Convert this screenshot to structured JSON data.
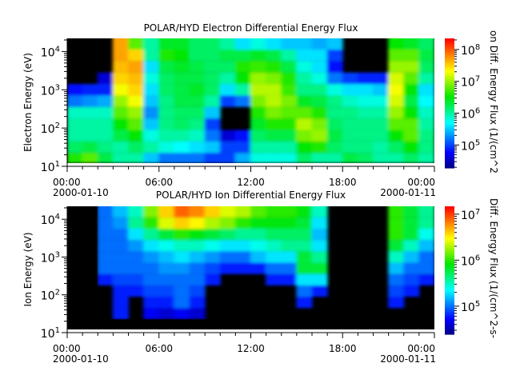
{
  "chart_data": [
    {
      "type": "heatmap",
      "title": "POLAR/HYD  Electron Differential Energy Flux",
      "ylabel": "Electron Energy (eV)",
      "colorbar_label": "on Diff. Energy Flux (1/(cm^2",
      "y_scale": "log",
      "ylim": [
        10,
        22000
      ],
      "y_ticks": [
        {
          "base": "10",
          "exp": "1"
        },
        {
          "base": "10",
          "exp": "2"
        },
        {
          "base": "10",
          "exp": "3"
        },
        {
          "base": "10",
          "exp": "4"
        }
      ],
      "colorbar_scale": "log",
      "colorbar_log10_range": [
        4.28,
        8.35
      ],
      "colorbar_ticks": [
        {
          "base": "10",
          "exp": "5"
        },
        {
          "base": "10",
          "exp": "6"
        },
        {
          "base": "10",
          "exp": "7"
        },
        {
          "base": "10",
          "exp": "8"
        }
      ],
      "colormap": "rainbow",
      "no_data_color": "#000000",
      "x_hours": [
        0,
        1,
        2,
        3,
        4,
        5,
        6,
        7,
        8,
        9,
        10,
        11,
        12,
        13,
        14,
        15,
        16,
        17,
        18,
        19,
        20,
        21,
        22,
        23
      ],
      "energy_log10_eV": [
        1.2,
        1.5,
        1.8,
        2.1,
        2.4,
        2.7,
        3.0,
        3.3,
        3.6,
        3.9,
        4.2
      ],
      "log10_flux": [
        [
          6.6,
          6.2,
          6.0,
          6.0,
          5.9,
          5.2,
          4.8,
          null,
          null,
          null,
          null
        ],
        [
          6.8,
          6.3,
          6.0,
          6.0,
          5.9,
          5.3,
          4.9,
          null,
          null,
          null,
          null
        ],
        [
          6.3,
          6.1,
          6.0,
          6.0,
          5.9,
          5.4,
          4.9,
          4.6,
          null,
          null,
          null
        ],
        [
          6.0,
          6.0,
          6.3,
          6.5,
          6.8,
          7.0,
          7.3,
          7.5,
          7.6,
          7.7,
          7.7
        ],
        [
          6.0,
          6.2,
          6.5,
          6.8,
          7.0,
          7.3,
          7.5,
          7.6,
          7.7,
          7.5,
          6.8
        ],
        [
          5.5,
          6.0,
          5.8,
          5.5,
          5.3,
          5.5,
          5.6,
          5.8,
          5.6,
          6.0,
          6.0
        ],
        [
          5.2,
          5.8,
          6.0,
          6.1,
          6.1,
          6.1,
          6.2,
          6.2,
          6.3,
          6.6,
          6.4
        ],
        [
          5.2,
          5.7,
          6.0,
          6.2,
          6.2,
          6.3,
          6.3,
          6.3,
          6.4,
          6.5,
          6.4
        ],
        [
          5.2,
          5.6,
          5.9,
          6.1,
          6.2,
          6.3,
          6.4,
          6.3,
          6.3,
          6.2,
          6.2
        ],
        [
          5.0,
          5.5,
          5.2,
          5.0,
          5.5,
          6.0,
          6.2,
          6.2,
          6.2,
          6.2,
          6.2
        ],
        [
          5.0,
          5.0,
          4.6,
          null,
          null,
          5.0,
          5.6,
          6.0,
          6.2,
          6.3,
          6.0
        ],
        [
          5.4,
          5.0,
          4.8,
          null,
          null,
          5.2,
          6.0,
          6.5,
          6.6,
          6.3,
          5.6
        ],
        [
          5.8,
          6.0,
          6.2,
          6.4,
          6.6,
          6.9,
          7.1,
          7.0,
          6.7,
          6.4,
          5.8
        ],
        [
          5.8,
          6.0,
          6.3,
          6.6,
          6.9,
          7.1,
          7.1,
          6.9,
          6.6,
          6.3,
          5.6
        ],
        [
          5.8,
          6.0,
          6.3,
          6.6,
          6.8,
          6.9,
          6.7,
          6.6,
          6.3,
          6.0,
          5.5
        ],
        [
          6.2,
          6.5,
          6.9,
          7.1,
          6.8,
          6.4,
          6.1,
          6.0,
          5.8,
          5.6,
          5.5
        ],
        [
          6.0,
          6.6,
          7.0,
          6.9,
          6.6,
          6.3,
          6.1,
          5.8,
          5.6,
          5.6,
          5.4
        ],
        [
          6.0,
          6.2,
          6.3,
          6.2,
          6.1,
          6.1,
          5.8,
          5.2,
          4.8,
          5.0,
          5.5
        ],
        [
          6.3,
          6.1,
          6.1,
          6.1,
          6.1,
          5.9,
          5.6,
          5.0,
          null,
          null,
          null
        ],
        [
          6.2,
          6.1,
          6.1,
          6.1,
          6.0,
          5.8,
          5.6,
          4.9,
          null,
          null,
          null
        ],
        [
          6.0,
          6.0,
          6.1,
          6.1,
          6.0,
          5.8,
          5.5,
          4.9,
          null,
          null,
          null
        ],
        [
          6.0,
          6.2,
          6.5,
          6.8,
          7.0,
          7.2,
          7.3,
          7.2,
          7.0,
          6.8,
          6.5
        ],
        [
          6.2,
          6.5,
          6.8,
          6.8,
          6.5,
          6.3,
          6.5,
          6.8,
          7.0,
          6.8,
          6.4
        ],
        [
          6.0,
          6.1,
          6.1,
          6.0,
          5.9,
          5.7,
          5.6,
          6.0,
          6.2,
          6.3,
          6.2
        ]
      ]
    },
    {
      "type": "heatmap",
      "title": "POLAR/HYD  Ion Differential Energy Flux",
      "ylabel": "Ion Energy (eV)",
      "colorbar_label": "Diff. Energy Flux (1/(cm^2-s-",
      "y_scale": "log",
      "ylim": [
        10,
        22000
      ],
      "y_ticks": [
        {
          "base": "10",
          "exp": "1"
        },
        {
          "base": "10",
          "exp": "2"
        },
        {
          "base": "10",
          "exp": "3"
        },
        {
          "base": "10",
          "exp": "4"
        }
      ],
      "colorbar_scale": "log",
      "colorbar_log10_range": [
        4.39,
        7.17
      ],
      "colorbar_ticks": [
        {
          "base": "10",
          "exp": "5"
        },
        {
          "base": "10",
          "exp": "6"
        },
        {
          "base": "10",
          "exp": "7"
        }
      ],
      "colormap": "rainbow",
      "no_data_color": "#000000",
      "x_hours": [
        0,
        1,
        2,
        3,
        4,
        5,
        6,
        7,
        8,
        9,
        10,
        11,
        12,
        13,
        14,
        15,
        16,
        17,
        18,
        19,
        20,
        21,
        22,
        23
      ],
      "energy_log10_eV": [
        1.2,
        1.5,
        1.8,
        2.1,
        2.4,
        2.7,
        3.0,
        3.3,
        3.6,
        3.9,
        4.2
      ],
      "log10_flux": [
        [
          null,
          null,
          null,
          null,
          null,
          null,
          null,
          null,
          null,
          null,
          null
        ],
        [
          null,
          null,
          null,
          null,
          null,
          null,
          null,
          null,
          null,
          null,
          null
        ],
        [
          null,
          null,
          null,
          null,
          4.8,
          5.0,
          5.0,
          5.0,
          5.0,
          5.0,
          5.0
        ],
        [
          null,
          4.8,
          4.8,
          4.8,
          4.9,
          5.0,
          5.0,
          5.0,
          5.0,
          5.1,
          5.2
        ],
        [
          null,
          null,
          null,
          4.8,
          4.9,
          5.0,
          5.0,
          5.1,
          5.3,
          5.6,
          5.5
        ],
        [
          null,
          4.7,
          4.8,
          4.9,
          5.0,
          5.0,
          5.1,
          5.3,
          5.6,
          6.0,
          6.2
        ],
        [
          null,
          4.6,
          4.8,
          4.9,
          5.0,
          5.1,
          5.2,
          5.4,
          5.8,
          6.4,
          6.6
        ],
        [
          null,
          4.7,
          5.0,
          5.0,
          5.0,
          5.1,
          5.3,
          5.5,
          6.0,
          6.6,
          6.9
        ],
        [
          null,
          4.6,
          4.8,
          4.9,
          5.0,
          5.0,
          5.2,
          5.5,
          5.9,
          6.5,
          6.8
        ],
        [
          null,
          null,
          null,
          null,
          4.8,
          4.9,
          5.1,
          5.4,
          5.8,
          6.3,
          6.6
        ],
        [
          null,
          null,
          null,
          null,
          null,
          4.8,
          5.0,
          5.3,
          5.7,
          6.2,
          6.4
        ],
        [
          null,
          null,
          null,
          null,
          null,
          4.8,
          5.0,
          5.3,
          5.6,
          6.0,
          6.3
        ],
        [
          null,
          null,
          null,
          null,
          null,
          4.8,
          5.2,
          5.4,
          5.6,
          5.9,
          6.1
        ],
        [
          null,
          null,
          null,
          null,
          4.8,
          5.0,
          5.3,
          5.5,
          5.7,
          5.9,
          6.0
        ],
        [
          null,
          null,
          null,
          null,
          4.8,
          5.0,
          5.3,
          5.6,
          5.7,
          5.9,
          6.0
        ],
        [
          null,
          null,
          4.8,
          5.0,
          5.3,
          5.8,
          5.8,
          5.6,
          5.7,
          5.8,
          5.9
        ],
        [
          null,
          null,
          null,
          4.8,
          5.3,
          5.8,
          5.6,
          5.3,
          5.2,
          5.3,
          5.5
        ],
        [
          null,
          null,
          null,
          null,
          null,
          null,
          null,
          null,
          null,
          null,
          null
        ],
        [
          null,
          null,
          null,
          null,
          null,
          null,
          null,
          null,
          null,
          null,
          null
        ],
        [
          null,
          null,
          null,
          null,
          null,
          null,
          null,
          null,
          null,
          null,
          null
        ],
        [
          null,
          null,
          null,
          null,
          null,
          null,
          null,
          null,
          null,
          null,
          null
        ],
        [
          null,
          null,
          4.8,
          4.9,
          5.0,
          5.2,
          5.5,
          5.8,
          6.0,
          6.0,
          6.0
        ],
        [
          null,
          null,
          null,
          4.8,
          4.9,
          5.0,
          5.2,
          5.5,
          5.8,
          5.8,
          5.8
        ],
        [
          null,
          null,
          null,
          null,
          4.8,
          5.0,
          5.0,
          5.2,
          5.4,
          5.6,
          5.6
        ]
      ]
    }
  ],
  "x_axis": {
    "range_hours": [
      0,
      24
    ],
    "ticks": [
      {
        "hour": 0,
        "time": "00:00",
        "date": "2000-01-10"
      },
      {
        "hour": 6,
        "time": "06:00",
        "date": ""
      },
      {
        "hour": 12,
        "time": "12:00",
        "date": ""
      },
      {
        "hour": 18,
        "time": "18:00",
        "date": ""
      },
      {
        "hour": 24,
        "time": "00:00",
        "date": "2000-01-11"
      }
    ]
  }
}
